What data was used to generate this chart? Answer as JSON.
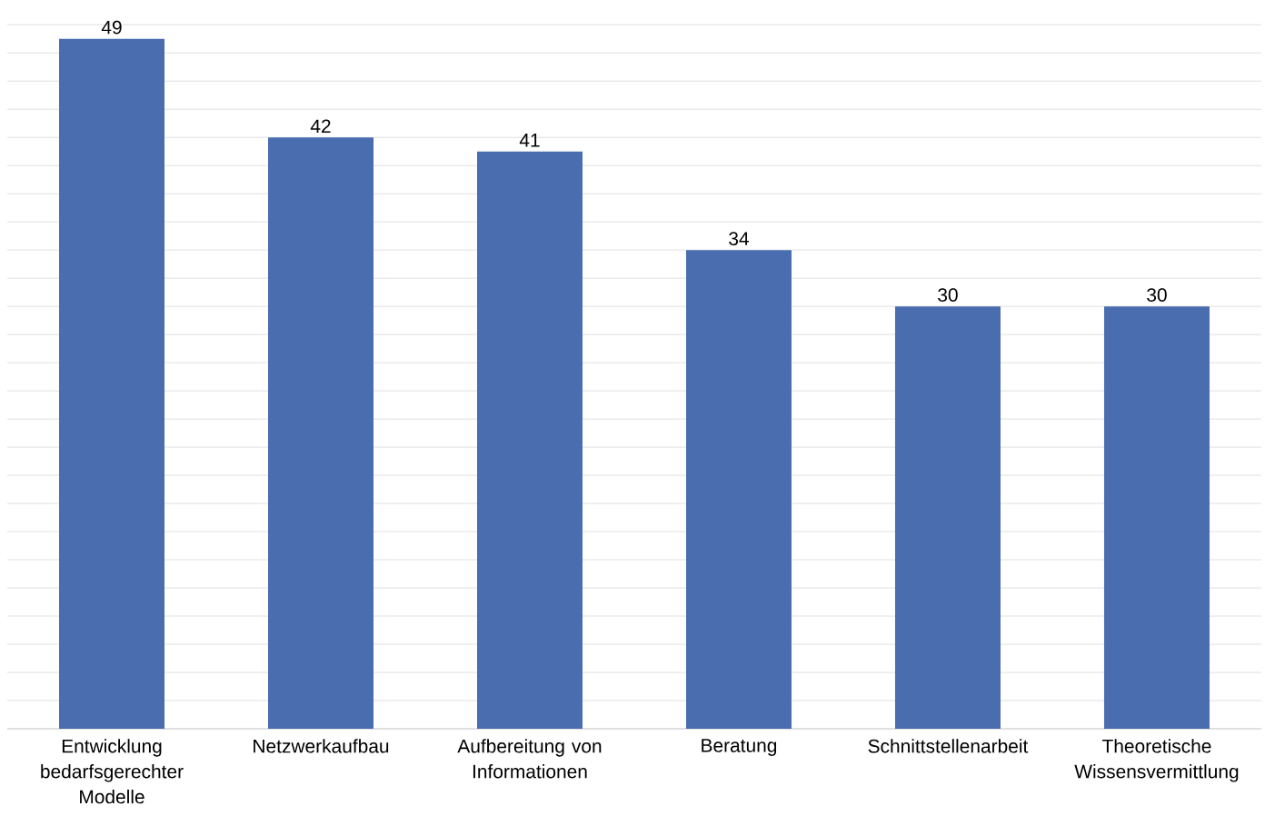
{
  "chart_data": {
    "type": "bar",
    "categories": [
      "Entwicklung bedarfsgerechter Modelle",
      "Netzwerkaufbau",
      "Aufbereitung von Informationen",
      "Beratung",
      "Schnittstellenarbeit",
      "Theoretische Wissensvermittlung"
    ],
    "values": [
      49,
      42,
      41,
      34,
      30,
      30
    ],
    "color": "#4a6db0",
    "grid": "y",
    "tick_labels": "x",
    "data_labels": true
  }
}
